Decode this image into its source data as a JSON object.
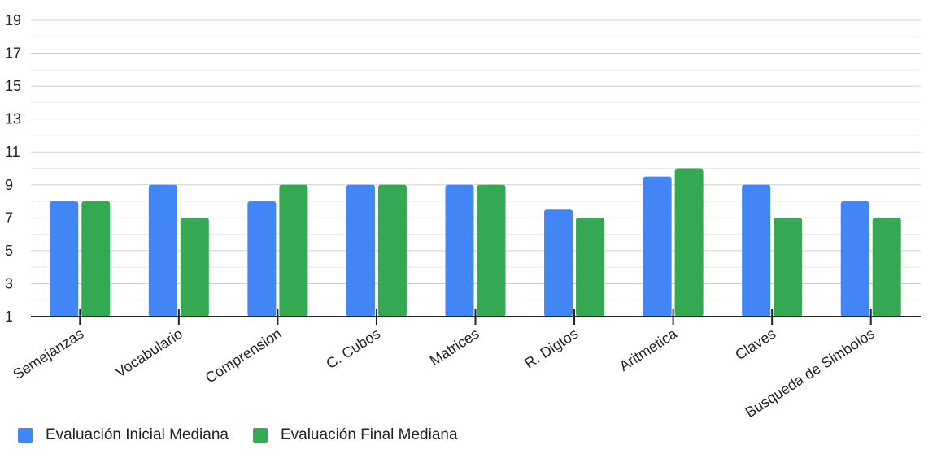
{
  "chart_data": {
    "type": "bar",
    "categories": [
      "Semejanzas",
      "Vocabulario",
      "Comprension",
      "C. Cubos",
      "Matrices",
      "R. Digtos",
      "Aritmetica",
      "Claves",
      "Busqueda de Simbolos"
    ],
    "series": [
      {
        "name": "Evaluación Inicial Mediana",
        "color": "#4285F4",
        "values": [
          8,
          9,
          8,
          9,
          9,
          7.5,
          9.5,
          9,
          8
        ]
      },
      {
        "name": "Evaluación Final Mediana",
        "color": "#34A853",
        "values": [
          8,
          7,
          9,
          9,
          9,
          7,
          10,
          7,
          7
        ]
      }
    ],
    "ylim": [
      1,
      19
    ],
    "yticks": [
      1,
      3,
      5,
      7,
      9,
      11,
      13,
      15,
      17,
      19
    ],
    "grid": true,
    "legend_position": "bottom-left",
    "title": "",
    "xlabel": "",
    "ylabel": ""
  }
}
